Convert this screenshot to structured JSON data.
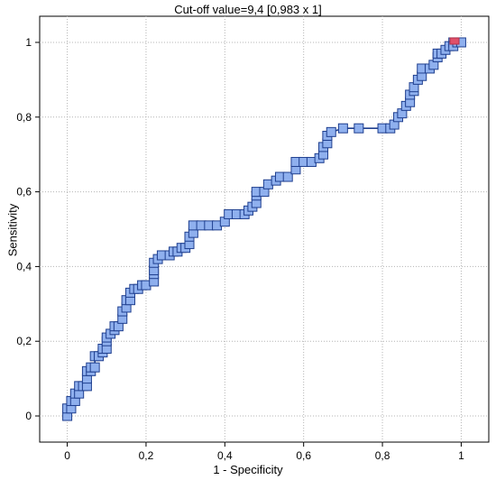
{
  "chart_data": {
    "type": "line",
    "title": "Cut-off value=9,4 [0,983 x 1]",
    "xlabel": "1 - Specificity",
    "ylabel": "Sensitivity",
    "xlim": [
      -0.07,
      1.07
    ],
    "ylim": [
      -0.07,
      1.07
    ],
    "grid": true,
    "x_ticks": [
      "0",
      "0,2",
      "0,4",
      "0,6",
      "0,8",
      "1"
    ],
    "y_ticks": [
      "0",
      "0,2",
      "0,4",
      "0,6",
      "0,8",
      "1"
    ],
    "series": [
      {
        "color": "#1f3f8f",
        "marker_fill": "#8fb0ee",
        "points": [
          [
            0.0,
            0.0
          ],
          [
            0.0,
            0.02
          ],
          [
            0.01,
            0.02
          ],
          [
            0.01,
            0.04
          ],
          [
            0.02,
            0.04
          ],
          [
            0.02,
            0.06
          ],
          [
            0.03,
            0.06
          ],
          [
            0.03,
            0.08
          ],
          [
            0.04,
            0.08
          ],
          [
            0.05,
            0.08
          ],
          [
            0.05,
            0.1
          ],
          [
            0.05,
            0.12
          ],
          [
            0.06,
            0.12
          ],
          [
            0.06,
            0.13
          ],
          [
            0.07,
            0.13
          ],
          [
            0.07,
            0.16
          ],
          [
            0.08,
            0.16
          ],
          [
            0.09,
            0.17
          ],
          [
            0.09,
            0.18
          ],
          [
            0.1,
            0.18
          ],
          [
            0.1,
            0.2
          ],
          [
            0.1,
            0.21
          ],
          [
            0.11,
            0.22
          ],
          [
            0.12,
            0.23
          ],
          [
            0.12,
            0.24
          ],
          [
            0.13,
            0.24
          ],
          [
            0.14,
            0.26
          ],
          [
            0.14,
            0.28
          ],
          [
            0.15,
            0.29
          ],
          [
            0.15,
            0.31
          ],
          [
            0.16,
            0.31
          ],
          [
            0.16,
            0.33
          ],
          [
            0.17,
            0.34
          ],
          [
            0.18,
            0.34
          ],
          [
            0.19,
            0.35
          ],
          [
            0.2,
            0.35
          ],
          [
            0.22,
            0.36
          ],
          [
            0.22,
            0.38
          ],
          [
            0.22,
            0.39
          ],
          [
            0.22,
            0.41
          ],
          [
            0.23,
            0.42
          ],
          [
            0.24,
            0.43
          ],
          [
            0.26,
            0.43
          ],
          [
            0.27,
            0.44
          ],
          [
            0.28,
            0.44
          ],
          [
            0.29,
            0.45
          ],
          [
            0.3,
            0.45
          ],
          [
            0.31,
            0.46
          ],
          [
            0.31,
            0.48
          ],
          [
            0.32,
            0.49
          ],
          [
            0.32,
            0.51
          ],
          [
            0.34,
            0.51
          ],
          [
            0.36,
            0.51
          ],
          [
            0.38,
            0.51
          ],
          [
            0.4,
            0.52
          ],
          [
            0.41,
            0.54
          ],
          [
            0.43,
            0.54
          ],
          [
            0.45,
            0.54
          ],
          [
            0.46,
            0.55
          ],
          [
            0.47,
            0.56
          ],
          [
            0.48,
            0.57
          ],
          [
            0.48,
            0.59
          ],
          [
            0.48,
            0.6
          ],
          [
            0.5,
            0.6
          ],
          [
            0.51,
            0.62
          ],
          [
            0.53,
            0.63
          ],
          [
            0.54,
            0.64
          ],
          [
            0.56,
            0.64
          ],
          [
            0.58,
            0.66
          ],
          [
            0.58,
            0.68
          ],
          [
            0.6,
            0.68
          ],
          [
            0.62,
            0.68
          ],
          [
            0.64,
            0.69
          ],
          [
            0.65,
            0.7
          ],
          [
            0.65,
            0.72
          ],
          [
            0.66,
            0.73
          ],
          [
            0.66,
            0.75
          ],
          [
            0.67,
            0.76
          ],
          [
            0.7,
            0.77
          ],
          [
            0.74,
            0.77
          ],
          [
            0.8,
            0.77
          ],
          [
            0.82,
            0.77
          ],
          [
            0.83,
            0.78
          ],
          [
            0.84,
            0.8
          ],
          [
            0.85,
            0.81
          ],
          [
            0.86,
            0.83
          ],
          [
            0.87,
            0.84
          ],
          [
            0.87,
            0.86
          ],
          [
            0.88,
            0.87
          ],
          [
            0.88,
            0.88
          ],
          [
            0.89,
            0.9
          ],
          [
            0.9,
            0.91
          ],
          [
            0.9,
            0.93
          ],
          [
            0.92,
            0.93
          ],
          [
            0.93,
            0.94
          ],
          [
            0.94,
            0.96
          ],
          [
            0.94,
            0.97
          ],
          [
            0.95,
            0.97
          ],
          [
            0.96,
            0.98
          ],
          [
            0.97,
            0.99
          ],
          [
            0.98,
            1.0
          ],
          [
            0.98,
            0.99
          ],
          [
            0.99,
            1.0
          ],
          [
            1.0,
            1.0
          ]
        ]
      }
    ],
    "highlight": {
      "x": 0.983,
      "y": 1.0,
      "color": "#e0506a"
    }
  }
}
